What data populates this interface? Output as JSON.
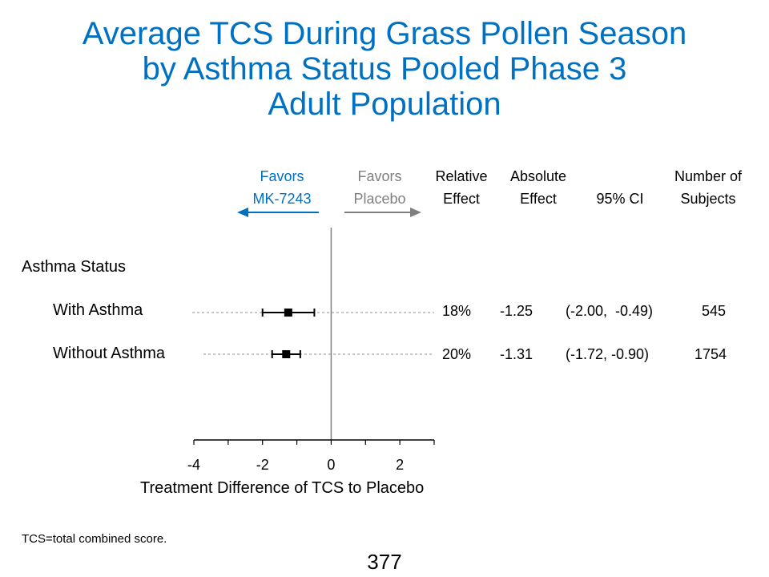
{
  "title": {
    "lines": [
      "Average TCS During Grass Pollen Season",
      "by Asthma Status Pooled Phase 3",
      "Adult Population"
    ]
  },
  "headers": {
    "favors_active": [
      "Favors",
      "MK-7243"
    ],
    "favors_placebo": [
      "Favors",
      "Placebo"
    ],
    "relative_effect": [
      "Relative",
      "Effect"
    ],
    "absolute_effect": [
      "Absolute",
      "Effect"
    ],
    "ci": "95% CI",
    "subjects": [
      "Number of",
      "Subjects"
    ]
  },
  "colors": {
    "title": "#0070C0",
    "favors_active": "#0070C0",
    "favors_placebo": "#7f7f7f"
  },
  "chart_data": {
    "type": "forest",
    "section": "Asthma Status",
    "xlabel": "Treatment Difference of TCS to Placebo",
    "xlim": [
      -4,
      3
    ],
    "xticks": [
      -4,
      -2,
      0,
      2
    ],
    "reference_line": 0,
    "rows": [
      {
        "label": "With Asthma",
        "estimate": -1.25,
        "ci_low": -2.0,
        "ci_high": -0.49,
        "relative_effect": "18%",
        "absolute_effect": "-1.25",
        "ci_text": "(-2.00,  -0.49)",
        "n": "545"
      },
      {
        "label": "Without Asthma",
        "estimate": -1.31,
        "ci_low": -1.72,
        "ci_high": -0.9,
        "relative_effect": "20%",
        "absolute_effect": "-1.31",
        "ci_text": "(-1.72, -0.90)",
        "n": "1754"
      }
    ]
  },
  "footnote": "TCS=total combined score.",
  "page_number": "377"
}
